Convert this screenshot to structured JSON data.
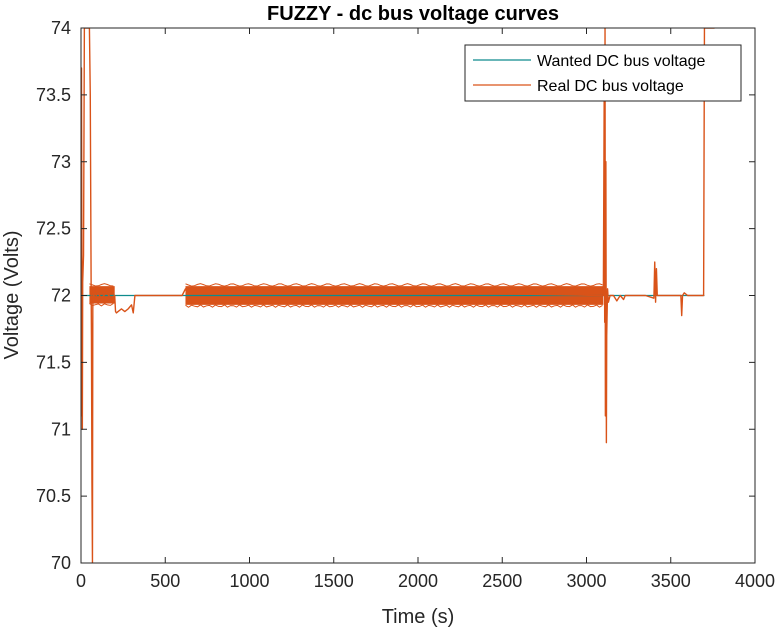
{
  "chart_data": {
    "type": "line",
    "title": "FUZZY - dc bus voltage curves",
    "xlabel": "Time (s)",
    "ylabel": "Voltage (Volts)",
    "xlim": [
      0,
      4000
    ],
    "ylim": [
      70,
      74
    ],
    "xticks": [
      "0",
      "500",
      "1000",
      "1500",
      "2000",
      "2500",
      "3000",
      "3500",
      "4000"
    ],
    "yticks": [
      "70",
      "70.5",
      "71",
      "71.5",
      "72",
      "72.5",
      "73",
      "73.5",
      "74"
    ],
    "grid": false,
    "legend_position": "top-right",
    "series": [
      {
        "name": "Wanted DC bus voltage",
        "color": "#0f8b8d",
        "x": [
          0,
          3700
        ],
        "y": [
          72,
          72
        ]
      },
      {
        "name": "Real DC bus voltage",
        "color": "#d95319",
        "x": [
          0,
          1,
          3,
          5,
          8,
          10,
          15,
          20,
          30,
          40,
          50,
          55,
          60,
          62,
          65,
          68,
          70,
          72,
          75,
          80,
          90,
          100,
          120,
          150,
          180,
          200,
          205,
          210,
          220,
          240,
          260,
          280,
          300,
          310,
          320,
          340,
          360,
          400,
          450,
          500,
          550,
          600,
          620,
          3100,
          3105,
          3108,
          3110,
          3112,
          3115,
          3118,
          3120,
          3125,
          3130,
          3140,
          3150,
          3160,
          3180,
          3200,
          3220,
          3230,
          3240,
          3250,
          3300,
          3350,
          3400,
          3405,
          3410,
          3415,
          3420,
          3440,
          3500,
          3550,
          3560,
          3565,
          3570,
          3580,
          3600,
          3650,
          3690,
          3695,
          3700,
          3720,
          3760
        ],
        "y": [
          72,
          71.1,
          73.7,
          72.5,
          71.0,
          72.1,
          72.3,
          74.0,
          74.0,
          74.0,
          74.0,
          73.5,
          72.1,
          71.7,
          70.6,
          70.0,
          71.9,
          72.05,
          71.95,
          72.05,
          72.0,
          72.02,
          71.98,
          72.02,
          71.98,
          72.0,
          71.88,
          71.87,
          71.88,
          71.9,
          71.88,
          71.9,
          71.93,
          71.87,
          72.0,
          72.0,
          72.0,
          72.0,
          72.0,
          72.0,
          72.0,
          72.0,
          72.05,
          72.0,
          73.5,
          71.8,
          74.0,
          71.1,
          73.0,
          70.9,
          71.7,
          72.05,
          71.95,
          72.0,
          72.0,
          72.0,
          71.96,
          72.0,
          71.97,
          72.0,
          72.0,
          72.0,
          72.0,
          72.0,
          71.98,
          72.25,
          71.95,
          72.2,
          72.0,
          72.0,
          72.0,
          72.0,
          72.0,
          71.85,
          72.0,
          72.02,
          72.0,
          72.0,
          72.0,
          72.0,
          74.0,
          74.0,
          74.0
        ]
      }
    ],
    "noise_bands": [
      {
        "series": "Real DC bus voltage",
        "x_start": 50,
        "x_end": 200,
        "y_low": 71.94,
        "y_high": 72.07
      },
      {
        "series": "Real DC bus voltage",
        "x_start": 620,
        "x_end": 3100,
        "y_low": 71.93,
        "y_high": 72.07
      }
    ]
  }
}
